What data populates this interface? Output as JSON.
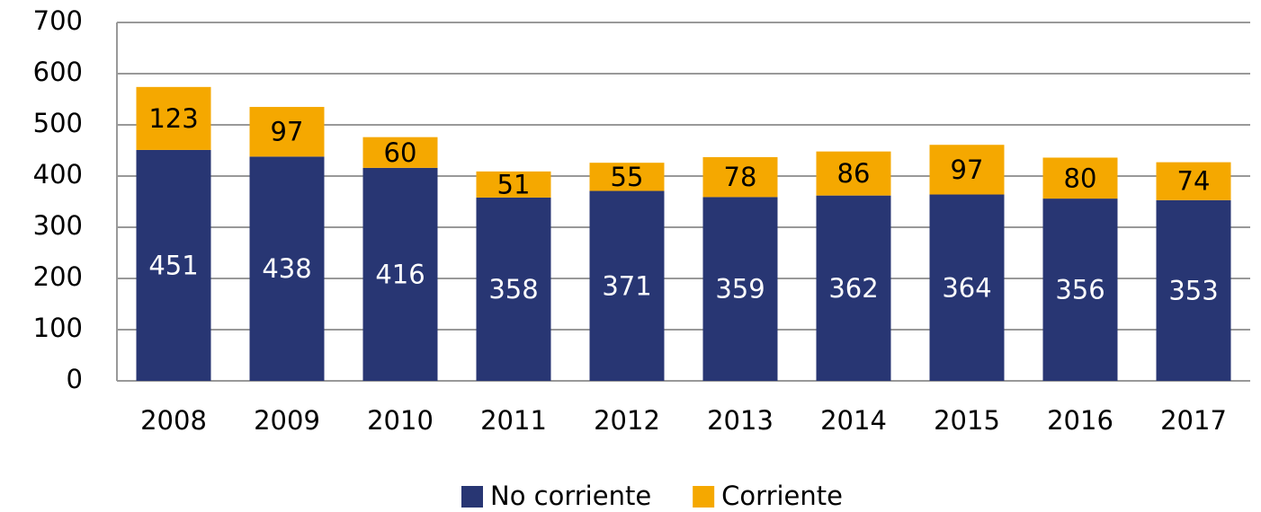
{
  "chart_data": {
    "type": "stacked_bar",
    "categories": [
      "2008",
      "2009",
      "2010",
      "2011",
      "2012",
      "2013",
      "2014",
      "2015",
      "2016",
      "2017"
    ],
    "series": [
      {
        "name": "No corriente",
        "color": "#283673",
        "values": [
          451,
          438,
          416,
          358,
          371,
          359,
          362,
          364,
          356,
          353
        ]
      },
      {
        "name": "Corriente",
        "color": "#f5a800",
        "values": [
          123,
          97,
          60,
          51,
          55,
          78,
          86,
          97,
          80,
          74
        ]
      }
    ],
    "ylim": [
      0,
      700
    ],
    "yticks": [
      0,
      100,
      200,
      300,
      400,
      500,
      600,
      700
    ],
    "grid": true,
    "legend": "bottom"
  }
}
